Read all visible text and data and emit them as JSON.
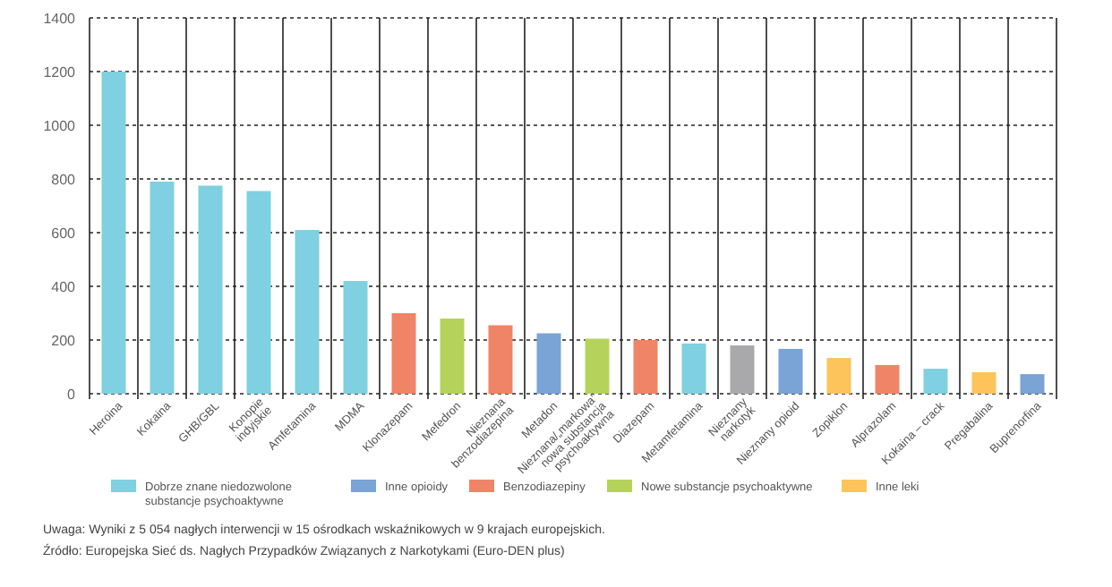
{
  "chart_data": {
    "type": "bar",
    "grid": true,
    "legend": "bottom",
    "categories": [
      "Heroina",
      "Kokaina",
      "GHB/GBL",
      "Konopie indyjskie",
      "Amfetamina",
      "MDMA",
      "Klonazepam",
      "Mefedron",
      "Nieznana benzodiazepina",
      "Metadon",
      "Nieznana/„markowa” nowa substancja psychoaktywna",
      "Diazepam",
      "Metamfetamina",
      "Nieznany narkotyk",
      "Nieznany opioid",
      "Zopiklon",
      "Alprazolam",
      "Kokaina – crack",
      "Pregabalina",
      "Buprenorfina"
    ],
    "series": [
      {
        "name": "Dobrze znane niedozwolone substancje psychoaktywne",
        "color": "#7fd0e0",
        "values": [
          1200,
          790,
          775,
          755,
          610,
          420,
          null,
          null,
          null,
          null,
          null,
          null,
          187,
          null,
          null,
          null,
          null,
          93,
          null,
          null
        ]
      },
      {
        "name": "Inne opioidy",
        "color": "#7aa3d6",
        "values": [
          null,
          null,
          null,
          null,
          null,
          null,
          null,
          null,
          null,
          225,
          null,
          null,
          null,
          null,
          167,
          null,
          null,
          null,
          null,
          73
        ]
      },
      {
        "name": "Benzodiazepiny",
        "color": "#f08466",
        "values": [
          null,
          null,
          null,
          null,
          null,
          null,
          300,
          null,
          255,
          null,
          null,
          200,
          null,
          null,
          null,
          null,
          107,
          null,
          null,
          null
        ]
      },
      {
        "name": "Nowe substancje psychoaktywne",
        "color": "#b5d35a",
        "values": [
          null,
          null,
          null,
          null,
          null,
          null,
          null,
          280,
          null,
          null,
          205,
          null,
          null,
          null,
          null,
          null,
          null,
          null,
          null,
          null
        ]
      },
      {
        "name": "Inne leki",
        "color": "#fcc45a",
        "values": [
          null,
          null,
          null,
          null,
          null,
          null,
          null,
          null,
          null,
          null,
          null,
          null,
          null,
          null,
          null,
          133,
          null,
          null,
          80,
          null
        ]
      },
      {
        "color": "#a9a9ab",
        "values": [
          null,
          null,
          null,
          null,
          null,
          null,
          null,
          null,
          null,
          null,
          null,
          null,
          null,
          180,
          null,
          null,
          null,
          null,
          null,
          null
        ]
      }
    ],
    "ylim": [
      0,
      1400
    ],
    "yticks": [
      0,
      200,
      400,
      600,
      800,
      1000,
      1200,
      1400
    ],
    "annotations": [
      "Uwaga: Wyniki z 5 054 nagłych interwencji w 15 ośrodkach wskaźnikowych w 9 krajach europejskich.",
      "Źródło: Europejska Sieć ds. Nagłych Przypadków Związanych z Narkotykami (Euro-DEN plus)"
    ]
  }
}
